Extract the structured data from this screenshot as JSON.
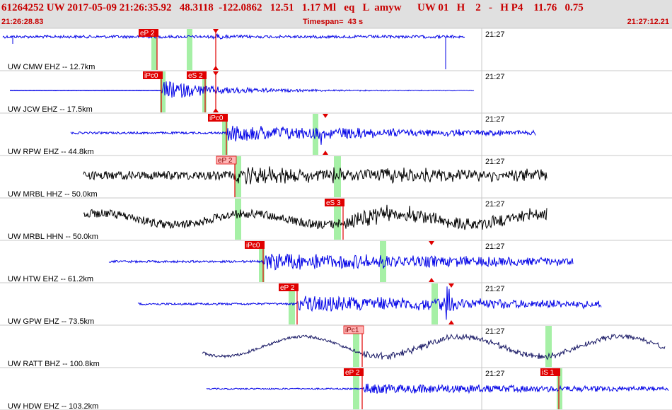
{
  "header": {
    "title": "61264252 UW 2017-05-09 21:26:35.92   48.3118  -122.0862   12.51   1.17 Ml   eq   L  amyw      UW 01   H    2   -   H P4    11.76   0.75",
    "start_time": "21:26:28.83",
    "timespan": "Timespan=  43 s",
    "end_time": "21:27:12.21"
  },
  "colors": {
    "blue": "#0000e6",
    "black": "#000000",
    "navy": "#1a1a66",
    "pick_red": "#e00000",
    "pick_light": "#ffb4b4",
    "window_green": "#a6f0a6",
    "grid": "#c8c8c8"
  },
  "traces": [
    {
      "label": "UW CMW EHZ -- 12.7km",
      "time": "21:27",
      "color": "blue",
      "picks": [
        {
          "label": "eP 2",
          "style": "dark"
        },
        {
          "label": "",
          "style": "dark"
        }
      ]
    },
    {
      "label": "UW JCW EHZ -- 17.5km",
      "time": "21:27",
      "color": "blue",
      "picks": [
        {
          "label": "iPc0",
          "style": "dark"
        },
        {
          "label": "eS 2",
          "style": "dark"
        },
        {
          "label": "",
          "style": "dark"
        }
      ]
    },
    {
      "label": "UW RPW EHZ -- 44.8km",
      "time": "21:27",
      "color": "blue",
      "picks": [
        {
          "label": "iPc0",
          "style": "dark"
        }
      ]
    },
    {
      "label": "UW MRBL HHZ -- 50.0km",
      "time": "21:27",
      "color": "black",
      "picks": [
        {
          "label": "eP 2",
          "style": "light"
        }
      ]
    },
    {
      "label": "UW MRBL HHN -- 50.0km",
      "time": "21:27",
      "color": "black",
      "picks": [
        {
          "label": "eS 3",
          "style": "dark"
        }
      ]
    },
    {
      "label": "UW HTW EHZ -- 61.2km",
      "time": "21:27",
      "color": "blue",
      "picks": [
        {
          "label": "iPc0",
          "style": "dark"
        }
      ]
    },
    {
      "label": "UW GPW EHZ -- 73.5km",
      "time": "21:27",
      "color": "blue",
      "picks": [
        {
          "label": "eP 2",
          "style": "dark"
        }
      ]
    },
    {
      "label": "UW RATT BHZ -- 100.8km",
      "time": "21:27",
      "color": "navy",
      "picks": [
        {
          "label": "iPc1",
          "style": "light"
        }
      ]
    },
    {
      "label": "UW HDW EHZ -- 103.2km",
      "time": "21:27",
      "color": "blue",
      "picks": [
        {
          "label": "eP 2",
          "style": "dark"
        },
        {
          "label": "iS 1",
          "style": "dark"
        }
      ]
    }
  ]
}
